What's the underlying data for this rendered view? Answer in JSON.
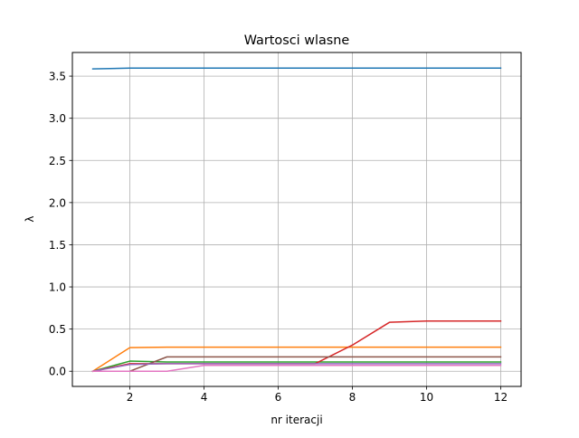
{
  "chart_data": {
    "type": "line",
    "title": "Wartosci wlasne",
    "xlabel": "nr iteracji",
    "ylabel": "λ",
    "xlim": [
      0.45,
      12.55
    ],
    "ylim": [
      -0.18,
      3.78
    ],
    "xticks": [
      2,
      4,
      6,
      8,
      10,
      12
    ],
    "yticks": [
      0.0,
      0.5,
      1.0,
      1.5,
      2.0,
      2.5,
      3.0,
      3.5
    ],
    "grid": true,
    "x": [
      1,
      2,
      3,
      4,
      5,
      6,
      7,
      8,
      9,
      10,
      11,
      12
    ],
    "series": [
      {
        "color": "#1f77b4",
        "values": [
          3.585,
          3.595,
          3.595,
          3.595,
          3.595,
          3.595,
          3.595,
          3.595,
          3.595,
          3.595,
          3.595,
          3.595
        ]
      },
      {
        "color": "#ff7f0e",
        "values": [
          0.0,
          0.28,
          0.285,
          0.285,
          0.285,
          0.285,
          0.285,
          0.285,
          0.285,
          0.285,
          0.285,
          0.285
        ]
      },
      {
        "color": "#2ca02c",
        "values": [
          0.0,
          0.12,
          0.11,
          0.11,
          0.11,
          0.11,
          0.11,
          0.11,
          0.11,
          0.11,
          0.11,
          0.11
        ]
      },
      {
        "color": "#d62728",
        "values": [
          0.0,
          0.09,
          0.09,
          0.09,
          0.09,
          0.09,
          0.09,
          0.31,
          0.58,
          0.595,
          0.595,
          0.595
        ]
      },
      {
        "color": "#8c564b",
        "values": [
          0.0,
          0.0,
          0.17,
          0.17,
          0.17,
          0.17,
          0.17,
          0.17,
          0.17,
          0.17,
          0.17,
          0.17
        ]
      },
      {
        "color": "#9467bd",
        "values": [
          0.0,
          0.08,
          0.09,
          0.09,
          0.09,
          0.09,
          0.09,
          0.09,
          0.09,
          0.09,
          0.09,
          0.09
        ]
      },
      {
        "color": "#e377c2",
        "values": [
          0.0,
          0.0,
          0.0,
          0.07,
          0.07,
          0.07,
          0.07,
          0.07,
          0.07,
          0.07,
          0.07,
          0.07
        ]
      }
    ]
  }
}
